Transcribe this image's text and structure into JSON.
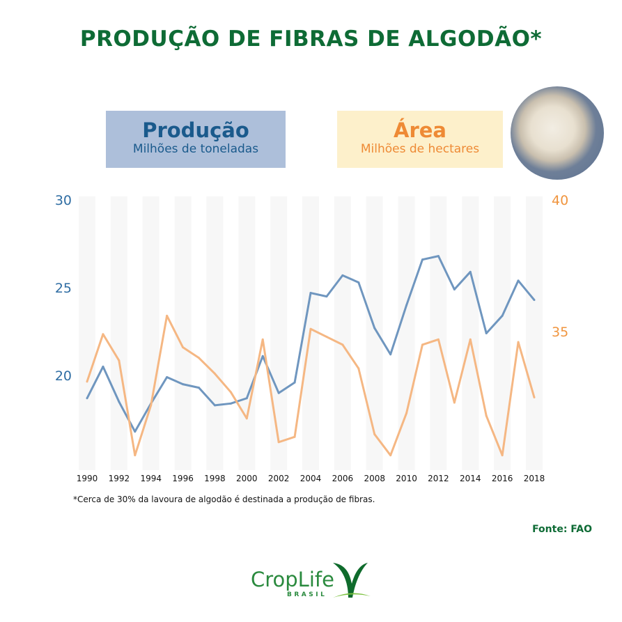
{
  "title": "PRODUÇÃO DE FIBRAS DE ALGODÃO*",
  "legend": {
    "production": {
      "title": "Produção",
      "unit": "Milhões de toneladas",
      "color": "#6f96bf"
    },
    "area": {
      "title": "Área",
      "unit": "Milhões de hectares",
      "color": "#f5b783"
    }
  },
  "footnote": "*Cerca de 30% da lavoura de algodão é destinada a produção de fibras.",
  "source": "Fonte: FAO",
  "logo": {
    "name": "CropLife",
    "sub": "BRASIL"
  },
  "chart_data": {
    "type": "line",
    "x": [
      1990,
      1991,
      1992,
      1993,
      1994,
      1995,
      1996,
      1997,
      1998,
      1999,
      2000,
      2001,
      2002,
      2003,
      2004,
      2005,
      2006,
      2007,
      2008,
      2009,
      2010,
      2011,
      2012,
      2013,
      2014,
      2015,
      2016,
      2017,
      2018
    ],
    "x_tick_labels": [
      "1990",
      "1992",
      "1994",
      "1996",
      "1998",
      "2000",
      "2002",
      "2004",
      "2006",
      "2008",
      "2010",
      "2012",
      "2014",
      "2016",
      "2018"
    ],
    "left_axis": {
      "ticks": [
        "20",
        "25",
        "30"
      ],
      "color": "#2f6da3"
    },
    "right_axis": {
      "ticks": [
        "35",
        "40"
      ],
      "color": "#f0953f"
    },
    "series": [
      {
        "name": "Produção",
        "axis": "left",
        "color": "#6f96bf",
        "values": [
          18.7,
          20.5,
          18.5,
          16.8,
          18.4,
          19.9,
          19.5,
          19.3,
          18.3,
          18.4,
          18.7,
          21.1,
          19.0,
          19.6,
          24.7,
          24.5,
          25.7,
          25.3,
          22.7,
          21.2,
          24.0,
          26.6,
          26.8,
          24.9,
          25.9,
          22.4,
          23.4,
          25.4,
          24.3
        ]
      },
      {
        "name": "Área",
        "axis": "right",
        "color": "#f5b783",
        "values": [
          33.1,
          34.9,
          33.9,
          30.3,
          32.2,
          35.6,
          34.4,
          34.0,
          33.4,
          32.7,
          31.7,
          34.7,
          30.8,
          31.0,
          35.1,
          34.8,
          34.5,
          33.6,
          31.1,
          30.3,
          31.9,
          34.5,
          34.7,
          32.3,
          34.7,
          31.8,
          30.3,
          34.6,
          32.5
        ]
      }
    ],
    "grid": "alternating vertical bands"
  }
}
